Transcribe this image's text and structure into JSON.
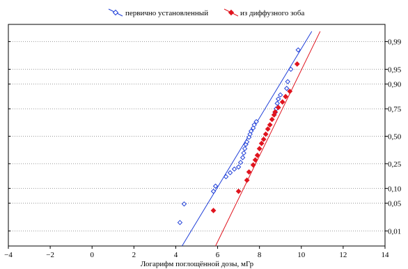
{
  "chart_data": {
    "type": "scatter",
    "title": "",
    "xlabel": "Логарифм поглощённой дозы, мГр",
    "ylabel": "",
    "xlim": [
      -4,
      14
    ],
    "x_ticks": [
      -4,
      -2,
      0,
      2,
      4,
      6,
      8,
      10,
      12,
      14
    ],
    "y_scale": "probability",
    "y_ticks": [
      0.01,
      0.05,
      0.1,
      0.25,
      0.5,
      0.75,
      0.9,
      0.95,
      0.99
    ],
    "y_tick_labels": [
      "0,01",
      "0,05",
      "0,10",
      "0,25",
      "0,50",
      "0,75",
      "0,90",
      "0,95",
      "0,99"
    ],
    "y_axis_side": "right",
    "grid": "horizontal dotted",
    "legend_position": "top",
    "colors": {
      "blue": "#1f3fd8",
      "red": "#e0141e"
    },
    "series": [
      {
        "name": "первично установленный",
        "color": "#1f3fd8",
        "marker": "open-diamond",
        "fit_line": [
          [
            4.3,
            0.0035
          ],
          [
            10.5,
            0.995
          ]
        ],
        "points": [
          [
            4.2,
            0.017
          ],
          [
            4.4,
            0.048
          ],
          [
            5.8,
            0.088
          ],
          [
            5.9,
            0.11
          ],
          [
            6.4,
            0.16
          ],
          [
            6.6,
            0.185
          ],
          [
            6.8,
            0.21
          ],
          [
            7.0,
            0.225
          ],
          [
            7.1,
            0.26
          ],
          [
            7.2,
            0.3
          ],
          [
            7.25,
            0.34
          ],
          [
            7.3,
            0.38
          ],
          [
            7.35,
            0.42
          ],
          [
            7.4,
            0.445
          ],
          [
            7.5,
            0.49
          ],
          [
            7.55,
            0.52
          ],
          [
            7.6,
            0.55
          ],
          [
            7.7,
            0.58
          ],
          [
            7.75,
            0.61
          ],
          [
            7.85,
            0.64
          ],
          [
            8.75,
            0.72
          ],
          [
            8.8,
            0.75
          ],
          [
            8.85,
            0.79
          ],
          [
            8.9,
            0.82
          ],
          [
            9.0,
            0.845
          ],
          [
            9.3,
            0.88
          ],
          [
            9.35,
            0.91
          ],
          [
            9.5,
            0.95
          ],
          [
            9.85,
            0.983
          ]
        ]
      },
      {
        "name": "из диффузного зоба",
        "color": "#e0141e",
        "marker": "filled-diamond",
        "fit_line": [
          [
            5.9,
            0.0035
          ],
          [
            10.9,
            0.995
          ]
        ],
        "points": [
          [
            5.8,
            0.034
          ],
          [
            7.0,
            0.088
          ],
          [
            7.4,
            0.14
          ],
          [
            7.5,
            0.19
          ],
          [
            7.7,
            0.24
          ],
          [
            7.8,
            0.28
          ],
          [
            7.9,
            0.32
          ],
          [
            8.0,
            0.38
          ],
          [
            8.1,
            0.43
          ],
          [
            8.2,
            0.47
          ],
          [
            8.3,
            0.52
          ],
          [
            8.4,
            0.57
          ],
          [
            8.5,
            0.61
          ],
          [
            8.6,
            0.66
          ],
          [
            8.7,
            0.7
          ],
          [
            8.75,
            0.725
          ],
          [
            8.9,
            0.76
          ],
          [
            9.1,
            0.8
          ],
          [
            9.25,
            0.835
          ],
          [
            9.45,
            0.865
          ],
          [
            9.8,
            0.962
          ]
        ]
      }
    ]
  }
}
